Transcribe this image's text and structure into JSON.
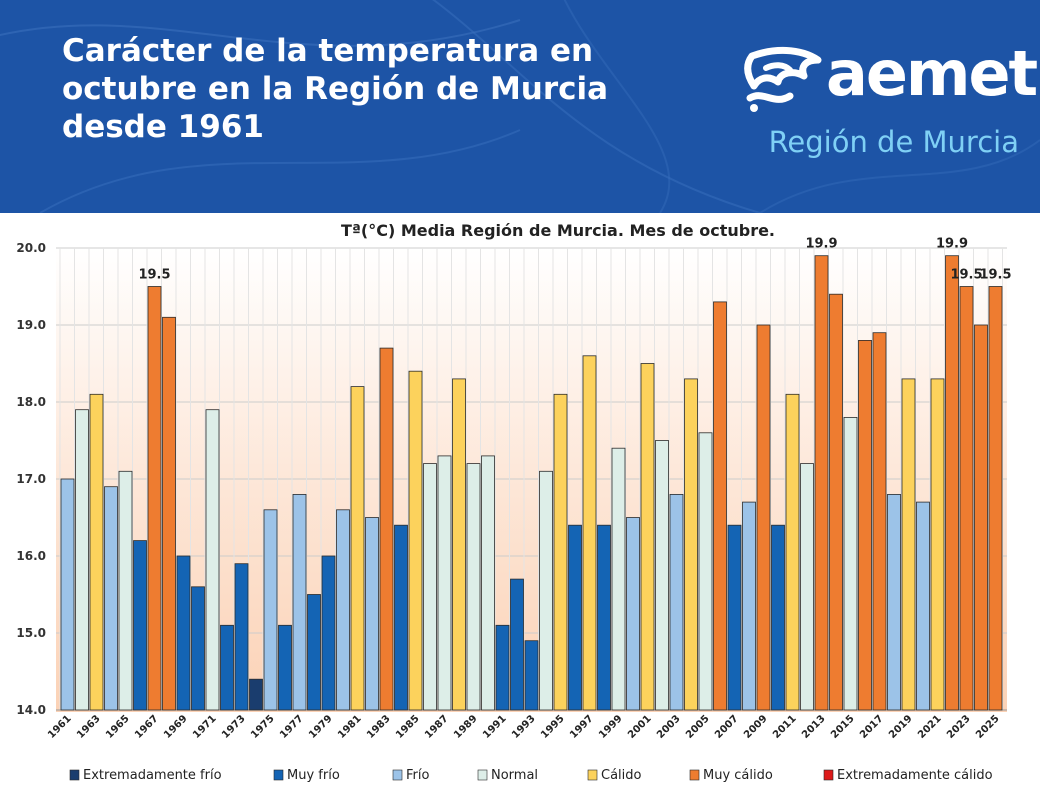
{
  "header": {
    "title": "Carácter de la temperatura en octubre en la Región de Murcia desde 1961",
    "logo_text": "aemet",
    "region": "Región de Murcia"
  },
  "colors": {
    "header_bg": "#1d54a6",
    "region_text": "#7fd0f5",
    "Extremadamente frío": "#1a3d6e",
    "Muy frío": "#1464b4",
    "Frío": "#9cc3e8",
    "Normal": "#ddeee8",
    "Cálido": "#fcd25c",
    "Muy cálido": "#ee7c30",
    "Extremadamente cálido": "#dd1a1a"
  },
  "chart_data": {
    "type": "bar",
    "title": "Tª(°C) Media Región de Murcia. Mes de octubre.",
    "ylim": [
      14.0,
      20.0
    ],
    "yticks": [
      "14.0",
      "15.0",
      "16.0",
      "17.0",
      "18.0",
      "19.0",
      "20.0"
    ],
    "grid": true,
    "legend_position": "bottom",
    "legend": [
      "Extremadamente frío",
      "Muy frío",
      "Frío",
      "Normal",
      "Cálido",
      "Muy cálido",
      "Extremadamente cálido"
    ],
    "x_tick_labels": [
      "1961",
      "1963",
      "1965",
      "1967",
      "1969",
      "1971",
      "1973",
      "1975",
      "1977",
      "1979",
      "1981",
      "1983",
      "1985",
      "1987",
      "1989",
      "1991",
      "1993",
      "1995",
      "1997",
      "1999",
      "2001",
      "2003",
      "2005",
      "2007",
      "2009",
      "2011",
      "2013",
      "2015",
      "2017",
      "2019",
      "2021",
      "2023",
      "2025"
    ],
    "bars": [
      {
        "year": 1961,
        "value": 17.0,
        "category": "Frío"
      },
      {
        "year": 1962,
        "value": 17.9,
        "category": "Normal"
      },
      {
        "year": 1963,
        "value": 18.1,
        "category": "Cálido"
      },
      {
        "year": 1964,
        "value": 16.9,
        "category": "Frío"
      },
      {
        "year": 1965,
        "value": 17.1,
        "category": "Normal"
      },
      {
        "year": 1966,
        "value": 16.2,
        "category": "Muy frío"
      },
      {
        "year": 1967,
        "value": 19.5,
        "category": "Muy cálido",
        "label": "19.5"
      },
      {
        "year": 1968,
        "value": 19.1,
        "category": "Muy cálido"
      },
      {
        "year": 1969,
        "value": 16.0,
        "category": "Muy frío"
      },
      {
        "year": 1970,
        "value": 15.6,
        "category": "Muy frío"
      },
      {
        "year": 1971,
        "value": 17.9,
        "category": "Normal"
      },
      {
        "year": 1972,
        "value": 15.1,
        "category": "Muy frío"
      },
      {
        "year": 1973,
        "value": 15.9,
        "category": "Muy frío"
      },
      {
        "year": 1974,
        "value": 14.4,
        "category": "Extremadamente frío"
      },
      {
        "year": 1975,
        "value": 16.6,
        "category": "Frío"
      },
      {
        "year": 1976,
        "value": 15.1,
        "category": "Muy frío"
      },
      {
        "year": 1977,
        "value": 16.8,
        "category": "Frío"
      },
      {
        "year": 1978,
        "value": 15.5,
        "category": "Muy frío"
      },
      {
        "year": 1979,
        "value": 16.0,
        "category": "Muy frío"
      },
      {
        "year": 1980,
        "value": 16.6,
        "category": "Frío"
      },
      {
        "year": 1981,
        "value": 18.2,
        "category": "Cálido"
      },
      {
        "year": 1982,
        "value": 16.5,
        "category": "Frío"
      },
      {
        "year": 1983,
        "value": 18.7,
        "category": "Muy cálido"
      },
      {
        "year": 1984,
        "value": 16.4,
        "category": "Muy frío"
      },
      {
        "year": 1985,
        "value": 18.4,
        "category": "Cálido"
      },
      {
        "year": 1986,
        "value": 17.2,
        "category": "Normal"
      },
      {
        "year": 1987,
        "value": 17.3,
        "category": "Normal"
      },
      {
        "year": 1988,
        "value": 18.3,
        "category": "Cálido"
      },
      {
        "year": 1989,
        "value": 17.2,
        "category": "Normal"
      },
      {
        "year": 1990,
        "value": 17.3,
        "category": "Normal"
      },
      {
        "year": 1991,
        "value": 15.1,
        "category": "Muy frío"
      },
      {
        "year": 1992,
        "value": 15.7,
        "category": "Muy frío"
      },
      {
        "year": 1993,
        "value": 14.9,
        "category": "Muy frío"
      },
      {
        "year": 1994,
        "value": 17.1,
        "category": "Normal"
      },
      {
        "year": 1995,
        "value": 18.1,
        "category": "Cálido"
      },
      {
        "year": 1996,
        "value": 16.4,
        "category": "Muy frío"
      },
      {
        "year": 1997,
        "value": 18.6,
        "category": "Cálido"
      },
      {
        "year": 1998,
        "value": 16.4,
        "category": "Muy frío"
      },
      {
        "year": 1999,
        "value": 17.4,
        "category": "Normal"
      },
      {
        "year": 2000,
        "value": 16.5,
        "category": "Frío"
      },
      {
        "year": 2001,
        "value": 18.5,
        "category": "Cálido"
      },
      {
        "year": 2002,
        "value": 17.5,
        "category": "Normal"
      },
      {
        "year": 2003,
        "value": 16.8,
        "category": "Frío"
      },
      {
        "year": 2004,
        "value": 18.3,
        "category": "Cálido"
      },
      {
        "year": 2005,
        "value": 17.6,
        "category": "Normal"
      },
      {
        "year": 2006,
        "value": 19.3,
        "category": "Muy cálido"
      },
      {
        "year": 2007,
        "value": 16.4,
        "category": "Muy frío"
      },
      {
        "year": 2008,
        "value": 16.7,
        "category": "Frío"
      },
      {
        "year": 2009,
        "value": 19.0,
        "category": "Muy cálido"
      },
      {
        "year": 2010,
        "value": 16.4,
        "category": "Muy frío"
      },
      {
        "year": 2011,
        "value": 18.1,
        "category": "Cálido"
      },
      {
        "year": 2012,
        "value": 17.2,
        "category": "Normal"
      },
      {
        "year": 2013,
        "value": 19.9,
        "category": "Muy cálido",
        "label": "19.9"
      },
      {
        "year": 2014,
        "value": 19.4,
        "category": "Muy cálido"
      },
      {
        "year": 2015,
        "value": 17.8,
        "category": "Normal"
      },
      {
        "year": 2016,
        "value": 18.8,
        "category": "Muy cálido"
      },
      {
        "year": 2017,
        "value": 18.9,
        "category": "Muy cálido"
      },
      {
        "year": 2018,
        "value": 16.8,
        "category": "Frío"
      },
      {
        "year": 2019,
        "value": 18.3,
        "category": "Cálido"
      },
      {
        "year": 2020,
        "value": 16.7,
        "category": "Frío"
      },
      {
        "year": 2021,
        "value": 18.3,
        "category": "Cálido"
      },
      {
        "year": 2022,
        "value": 19.9,
        "category": "Muy cálido",
        "label": "19.9"
      },
      {
        "year": 2023,
        "value": 19.5,
        "category": "Muy cálido",
        "label": "19.5"
      },
      {
        "year": 2024,
        "value": 19.0,
        "category": "Muy cálido"
      },
      {
        "year": 2025,
        "value": 19.5,
        "category": "Muy cálido",
        "label": "19.5"
      }
    ]
  }
}
